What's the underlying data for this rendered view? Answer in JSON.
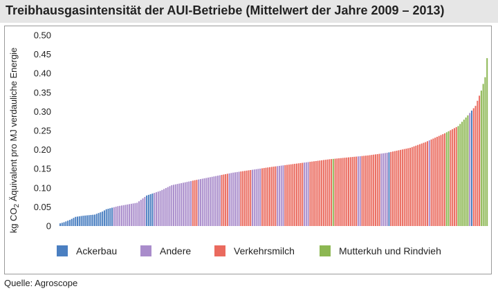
{
  "header": {
    "title": "Treibhausgasintensität der AUI-Betriebe (Mittelwert der Jahre 2009 – 2013)"
  },
  "footer": {
    "source": "Quelle: Agroscope"
  },
  "colors": {
    "Ackerbau": "#4a7fc1",
    "Andere": "#a98ccb",
    "Verkehrsmilch": "#ea6a5e",
    "Mutterkuh und Rindvieh": "#8cb752",
    "background": "#ffffff",
    "header_band": "#e6e6e6",
    "frame": "#999999"
  },
  "chart_data": {
    "type": "bar",
    "title": "",
    "xlabel": "",
    "ylabel_parts": [
      "kg CO",
      "2",
      " Äquivalent pro MJ verdauliche Energie"
    ],
    "ylim": [
      0,
      0.5
    ],
    "yticks": [
      "0",
      "0.05",
      "0.10",
      "0.15",
      "0.20",
      "0.25",
      "0.30",
      "0.35",
      "0.40",
      "0.45",
      "0.50"
    ],
    "grid": false,
    "legend_position": "bottom",
    "legend": [
      "Ackerbau",
      "Andere",
      "Verkehrsmilch",
      "Mutterkuh und Rindvieh"
    ],
    "sorted": "ascending",
    "bar_count": 223,
    "profile": [
      [
        0,
        0.007
      ],
      [
        2,
        0.01
      ],
      [
        5,
        0.016
      ],
      [
        8,
        0.024
      ],
      [
        12,
        0.027
      ],
      [
        18,
        0.03
      ],
      [
        22,
        0.038
      ],
      [
        24,
        0.044
      ],
      [
        30,
        0.052
      ],
      [
        40,
        0.061
      ],
      [
        45,
        0.08
      ],
      [
        52,
        0.092
      ],
      [
        58,
        0.107
      ],
      [
        70,
        0.12
      ],
      [
        90,
        0.14
      ],
      [
        110,
        0.155
      ],
      [
        140,
        0.175
      ],
      [
        160,
        0.185
      ],
      [
        170,
        0.192
      ],
      [
        182,
        0.205
      ],
      [
        190,
        0.22
      ],
      [
        200,
        0.243
      ],
      [
        207,
        0.262
      ],
      [
        212,
        0.29
      ],
      [
        216,
        0.315
      ],
      [
        219,
        0.355
      ],
      [
        221,
        0.39
      ],
      [
        222,
        0.44
      ]
    ],
    "segments": [
      [
        "Ackerbau",
        28
      ],
      [
        "Andere",
        17
      ],
      [
        "Ackerbau",
        4
      ],
      [
        "Andere",
        20
      ],
      [
        "Verkehrsmilch",
        3
      ],
      [
        "Andere",
        12
      ],
      [
        "Verkehrsmilch",
        4
      ],
      [
        "Andere",
        6
      ],
      [
        "Verkehrsmilch",
        6
      ],
      [
        "Andere",
        5
      ],
      [
        "Verkehrsmilch",
        8
      ],
      [
        "Andere",
        4
      ],
      [
        "Verkehrsmilch",
        10
      ],
      [
        "Andere",
        3
      ],
      [
        "Verkehrsmilch",
        12
      ],
      [
        "Mutterkuh und Rindvieh",
        1
      ],
      [
        "Verkehrsmilch",
        12
      ],
      [
        "Andere",
        2
      ],
      [
        "Verkehrsmilch",
        10
      ],
      [
        "Andere",
        4
      ],
      [
        "Ackerbau",
        1
      ],
      [
        "Verkehrsmilch",
        20
      ],
      [
        "Andere",
        1
      ],
      [
        "Verkehrsmilch",
        8
      ],
      [
        "Mutterkuh und Rindvieh",
        2
      ],
      [
        "Verkehrsmilch",
        4
      ],
      [
        "Mutterkuh und Rindvieh",
        6
      ],
      [
        "Andere",
        1
      ],
      [
        "Ackerbau",
        1
      ],
      [
        "Verkehrsmilch",
        4
      ],
      [
        "Mutterkuh und Rindvieh",
        4
      ]
    ]
  }
}
